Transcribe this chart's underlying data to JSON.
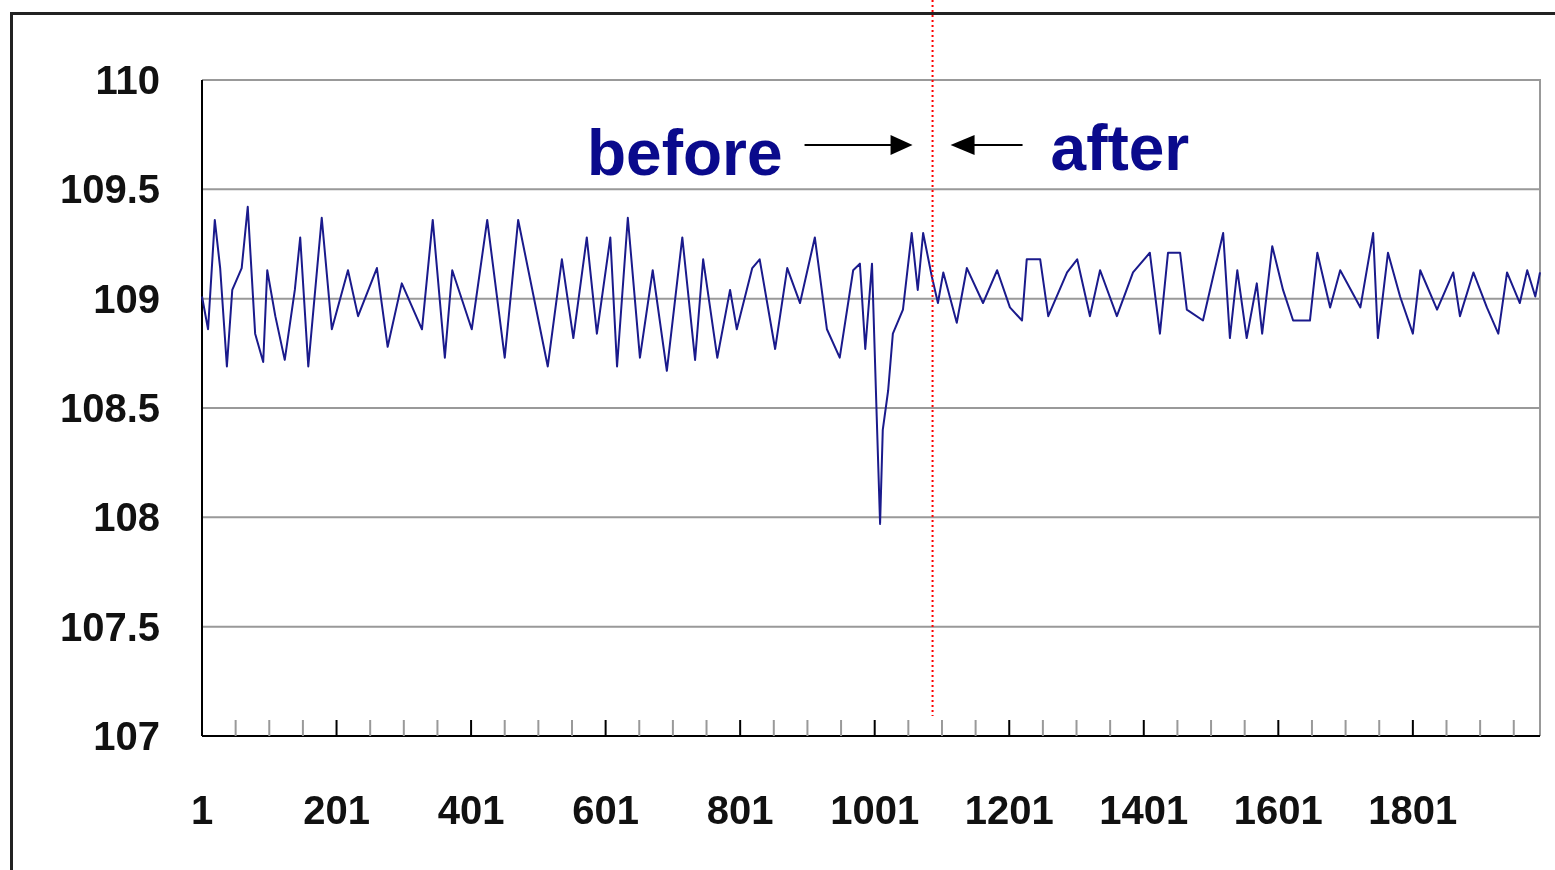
{
  "chart_data": {
    "type": "line",
    "x": [
      1,
      10,
      20,
      28,
      38,
      46,
      60,
      69,
      80,
      92,
      98,
      110,
      124,
      139,
      147,
      159,
      179,
      194,
      218,
      233,
      261,
      277,
      298,
      328,
      344,
      362,
      373,
      402,
      425,
      451,
      471,
      515,
      536,
      553,
      573,
      588,
      608,
      618,
      634,
      652,
      671,
      692,
      715,
      734,
      746,
      767,
      786,
      796,
      819,
      830,
      853,
      871,
      890,
      912,
      930,
      949,
      969,
      979,
      987,
      997,
      1004,
      1009,
      1013,
      1021,
      1028,
      1043,
      1056,
      1065,
      1073,
      1086,
      1095,
      1103,
      1123,
      1138,
      1162,
      1183,
      1202,
      1220,
      1227,
      1247,
      1259,
      1287,
      1302,
      1321,
      1336,
      1361,
      1385,
      1410,
      1425,
      1437,
      1455,
      1465,
      1489,
      1519,
      1529,
      1540,
      1554,
      1569,
      1577,
      1592,
      1608,
      1623,
      1648,
      1659,
      1678,
      1693,
      1723,
      1742,
      1749,
      1764,
      1782,
      1801,
      1812,
      1837,
      1861,
      1871,
      1891,
      1911,
      1928,
      1941,
      1960,
      1971,
      1983,
      1990
    ],
    "series": [
      {
        "color": "#1a1a8c",
        "values": [
          109.01,
          108.86,
          109.36,
          109.14,
          108.69,
          109.04,
          109.14,
          109.42,
          108.84,
          108.71,
          109.13,
          108.92,
          108.72,
          109.04,
          109.28,
          108.69,
          109.37,
          108.86,
          109.13,
          108.92,
          109.14,
          108.78,
          109.07,
          108.86,
          109.36,
          108.73,
          109.13,
          108.86,
          109.36,
          108.73,
          109.36,
          108.69,
          109.18,
          108.82,
          109.28,
          108.84,
          109.28,
          108.69,
          109.37,
          108.73,
          109.13,
          108.67,
          109.28,
          108.72,
          109.18,
          108.73,
          109.04,
          108.86,
          109.14,
          109.18,
          108.77,
          109.14,
          108.98,
          109.28,
          108.86,
          108.73,
          109.13,
          109.16,
          108.77,
          109.16,
          108.46,
          107.97,
          108.4,
          108.58,
          108.84,
          108.95,
          109.3,
          109.04,
          109.3,
          109.1,
          108.98,
          109.12,
          108.89,
          109.14,
          108.98,
          109.13,
          108.96,
          108.9,
          109.18,
          109.18,
          108.92,
          109.12,
          109.18,
          108.92,
          109.13,
          108.92,
          109.12,
          109.21,
          108.84,
          109.21,
          109.21,
          108.95,
          108.9,
          109.3,
          108.82,
          109.13,
          108.82,
          109.07,
          108.84,
          109.24,
          109.04,
          108.9,
          108.9,
          109.21,
          108.96,
          109.13,
          108.96,
          109.3,
          108.82,
          109.21,
          109.01,
          108.84,
          109.13,
          108.95,
          109.12,
          108.92,
          109.12,
          108.96,
          108.84,
          109.12,
          108.98,
          109.13,
          109.01,
          109.12
        ]
      }
    ],
    "xlim": [
      1,
      1990
    ],
    "xticks": [
      1,
      {
        "value": 51,
        "label": null
      },
      {
        "value": 101,
        "label": null
      },
      {
        "value": 151,
        "label": null
      },
      201,
      {
        "value": 251,
        "label": null
      },
      {
        "value": 301,
        "label": null
      },
      {
        "value": 351,
        "label": null
      },
      401,
      {
        "value": 451,
        "label": null
      },
      {
        "value": 501,
        "label": null
      },
      {
        "value": 551,
        "label": null
      },
      601,
      {
        "value": 651,
        "label": null
      },
      {
        "value": 701,
        "label": null
      },
      {
        "value": 751,
        "label": null
      },
      801,
      {
        "value": 851,
        "label": null
      },
      {
        "value": 901,
        "label": null
      },
      {
        "value": 951,
        "label": null
      },
      1001,
      {
        "value": 1051,
        "label": null
      },
      {
        "value": 1101,
        "label": null
      },
      {
        "value": 1151,
        "label": null
      },
      1201,
      {
        "value": 1251,
        "label": null
      },
      {
        "value": 1301,
        "label": null
      },
      {
        "value": 1351,
        "label": null
      },
      1401,
      {
        "value": 1451,
        "label": null
      },
      {
        "value": 1501,
        "label": null
      },
      {
        "value": 1551,
        "label": null
      },
      1601,
      {
        "value": 1651,
        "label": null
      },
      {
        "value": 1701,
        "label": null
      },
      {
        "value": 1751,
        "label": null
      },
      1801,
      {
        "value": 1851,
        "label": null
      },
      {
        "value": 1901,
        "label": null
      },
      {
        "value": 1951,
        "label": null
      }
    ],
    "ylim": [
      107,
      110
    ],
    "yticks": [
      107,
      107.5,
      108,
      108.5,
      109,
      109.5,
      110
    ],
    "grid": "y",
    "marker": "none",
    "line_style": "solid",
    "ref_lines": [
      {
        "axis": "x",
        "value": 1087,
        "color": "#ff0000",
        "line_style": "dotted"
      }
    ],
    "annotations": [
      "before",
      "after"
    ]
  }
}
